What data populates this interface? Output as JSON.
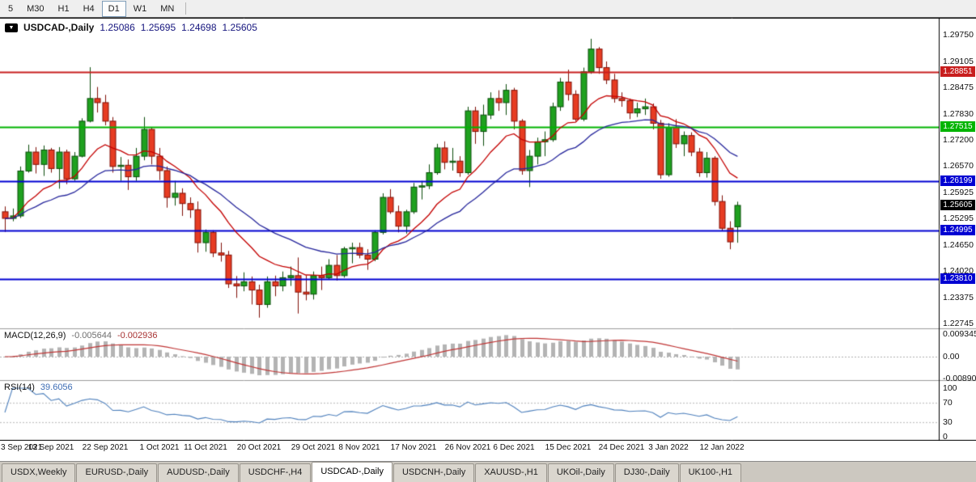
{
  "toolbar": {
    "timeframes": [
      {
        "label": "5",
        "active": false
      },
      {
        "label": "M30",
        "active": false
      },
      {
        "label": "H1",
        "active": false
      },
      {
        "label": "H4",
        "active": false
      },
      {
        "label": "D1",
        "active": true
      },
      {
        "label": "W1",
        "active": false
      },
      {
        "label": "MN",
        "active": false
      }
    ]
  },
  "chart": {
    "title_symbol": "USDCAD-,Daily",
    "ohlc": {
      "open": "1.25086",
      "high": "1.25695",
      "low": "1.24698",
      "close": "1.25605"
    },
    "current_price": {
      "label": "1.25605",
      "value": 1.25605
    },
    "y_axis_labels": [
      "1.29750",
      "1.29105",
      "1.28475",
      "1.27830",
      "1.27200",
      "1.26570",
      "1.25925",
      "1.25295",
      "1.24650",
      "1.24020",
      "1.23375",
      "1.22745"
    ],
    "levels": [
      {
        "value": 1.28851,
        "label": "1.28851",
        "color_key": "level_red"
      },
      {
        "value": 1.27515,
        "label": "1.27515",
        "color_key": "level_green"
      },
      {
        "value": 1.26199,
        "label": "1.26199",
        "color_key": "level_blue"
      },
      {
        "value": 1.24995,
        "label": "1.24995",
        "color_key": "level_blue"
      },
      {
        "value": 1.2381,
        "label": "1.23810",
        "color_key": "level_blue"
      }
    ]
  },
  "indicators": {
    "macd": {
      "label": "MACD(12,26,9)",
      "value": "-0.005644",
      "signal_value": "-0.002936",
      "fast": 12,
      "slow": 26,
      "signal": 9,
      "axis": [
        {
          "label": "0.009345",
          "value": 0.009345
        },
        {
          "label": "0.00",
          "value": 0
        },
        {
          "label": "-0.008905",
          "value": -0.008905
        }
      ]
    },
    "rsi": {
      "label": "RSI(14)",
      "value": "39.6056",
      "period": 14,
      "levels": [
        70,
        30
      ],
      "axis": [
        {
          "label": "100",
          "value": 100
        },
        {
          "label": "70",
          "value": 70
        },
        {
          "label": "30",
          "value": 30
        },
        {
          "label": "0",
          "value": 0
        }
      ]
    }
  },
  "tabs": [
    {
      "label": "USDX,Weekly",
      "active": false
    },
    {
      "label": "EURUSD-,Daily",
      "active": false
    },
    {
      "label": "AUDUSD-,Daily",
      "active": false
    },
    {
      "label": "USDCHF-,H4",
      "active": false
    },
    {
      "label": "USDCAD-,Daily",
      "active": true
    },
    {
      "label": "USDCNH-,Daily",
      "active": false
    },
    {
      "label": "XAUUSD-,H1",
      "active": false
    },
    {
      "label": "UKOil-,Daily",
      "active": false
    },
    {
      "label": "DJ30-,Daily",
      "active": false
    },
    {
      "label": "UK100-,H1",
      "active": false
    }
  ],
  "colors": {
    "bull": "#1fa11f",
    "bull_border": "#0b4d0b",
    "bear": "#e73c22",
    "bear_border": "#801008",
    "ma_fast": "#c40000",
    "ma_slow": "#26269c",
    "level_red": "#c81e1e",
    "level_green": "#00b400",
    "level_blue": "#0000d2",
    "tag_current_bg": "#000000",
    "macd_hist": "#b4b4b4",
    "macd_signal": "#c03535",
    "rsi_line": "#4f81bd",
    "panel_separator": "#9c9c9c"
  },
  "chart_data": {
    "type": "candlestick",
    "title": "USDCAD-,Daily",
    "ylim": [
      1.2262,
      1.3016
    ],
    "overlays": [
      {
        "name": "fast moving average",
        "color": "#c40000",
        "period": 12
      },
      {
        "name": "slow moving average",
        "color": "#26269c",
        "period": 26
      }
    ],
    "sub_panels": [
      "MACD(12,26,9)",
      "RSI(14)"
    ],
    "x_tick_labels": [
      {
        "label": "3 Sep 2021",
        "index": 0
      },
      {
        "label": "13 Sep 2021",
        "index": 6
      },
      {
        "label": "22 Sep 2021",
        "index": 13
      },
      {
        "label": "1 Oct 2021",
        "index": 20
      },
      {
        "label": "11 Oct 2021",
        "index": 26
      },
      {
        "label": "20 Oct 2021",
        "index": 33
      },
      {
        "label": "29 Oct 2021",
        "index": 40
      },
      {
        "label": "8 Nov 2021",
        "index": 46
      },
      {
        "label": "17 Nov 2021",
        "index": 53
      },
      {
        "label": "26 Nov 2021",
        "index": 60
      },
      {
        "label": "6 Dec 2021",
        "index": 66
      },
      {
        "label": "15 Dec 2021",
        "index": 73
      },
      {
        "label": "24 Dec 2021",
        "index": 80
      },
      {
        "label": "3 Jan 2022",
        "index": 86
      },
      {
        "label": "12 Jan 2022",
        "index": 93
      }
    ],
    "ohlc_series": [
      [
        1.2545,
        1.2558,
        1.2496,
        1.2529
      ],
      [
        1.2529,
        1.2553,
        1.2522,
        1.2535
      ],
      [
        1.2535,
        1.2655,
        1.253,
        1.2644
      ],
      [
        1.2644,
        1.2708,
        1.264,
        1.269
      ],
      [
        1.269,
        1.2702,
        1.2638,
        1.266
      ],
      [
        1.266,
        1.2706,
        1.2632,
        1.2695
      ],
      [
        1.2695,
        1.27,
        1.264,
        1.265
      ],
      [
        1.265,
        1.2702,
        1.2601,
        1.269
      ],
      [
        1.269,
        1.2696,
        1.2612,
        1.2625
      ],
      [
        1.2625,
        1.269,
        1.262,
        1.268
      ],
      [
        1.268,
        1.2772,
        1.2677,
        1.2765
      ],
      [
        1.2765,
        1.2896,
        1.2762,
        1.282
      ],
      [
        1.282,
        1.2848,
        1.2786,
        1.281
      ],
      [
        1.281,
        1.2829,
        1.2755,
        1.2765
      ],
      [
        1.2765,
        1.2775,
        1.264,
        1.2655
      ],
      [
        1.2655,
        1.2678,
        1.262,
        1.2658
      ],
      [
        1.2658,
        1.2672,
        1.2598,
        1.263
      ],
      [
        1.263,
        1.27,
        1.262,
        1.268
      ],
      [
        1.268,
        1.2775,
        1.267,
        1.2745
      ],
      [
        1.2745,
        1.275,
        1.266,
        1.268
      ],
      [
        1.268,
        1.27,
        1.2622,
        1.2645
      ],
      [
        1.2645,
        1.2655,
        1.2555,
        1.258
      ],
      [
        1.258,
        1.262,
        1.256,
        1.259
      ],
      [
        1.259,
        1.2602,
        1.2535,
        1.2565
      ],
      [
        1.2565,
        1.258,
        1.253,
        1.255
      ],
      [
        1.255,
        1.257,
        1.2446,
        1.247
      ],
      [
        1.247,
        1.2502,
        1.2448,
        1.2495
      ],
      [
        1.2495,
        1.25,
        1.2435,
        1.2445
      ],
      [
        1.2445,
        1.247,
        1.2424,
        1.244
      ],
      [
        1.244,
        1.245,
        1.236,
        1.237
      ],
      [
        1.237,
        1.2389,
        1.2336,
        1.2365
      ],
      [
        1.2365,
        1.2398,
        1.2352,
        1.2375
      ],
      [
        1.2375,
        1.2388,
        1.232,
        1.2355
      ],
      [
        1.2355,
        1.2368,
        1.2288,
        1.232
      ],
      [
        1.232,
        1.2388,
        1.2312,
        1.2375
      ],
      [
        1.2375,
        1.239,
        1.234,
        1.2365
      ],
      [
        1.2365,
        1.24,
        1.2352,
        1.2385
      ],
      [
        1.2385,
        1.2412,
        1.2365,
        1.239
      ],
      [
        1.239,
        1.2434,
        1.2298,
        1.235
      ],
      [
        1.235,
        1.239,
        1.233,
        1.2345
      ],
      [
        1.2345,
        1.24,
        1.2332,
        1.239
      ],
      [
        1.239,
        1.2412,
        1.2355,
        1.2385
      ],
      [
        1.2385,
        1.243,
        1.238,
        1.2415
      ],
      [
        1.2415,
        1.244,
        1.2378,
        1.239
      ],
      [
        1.239,
        1.246,
        1.2385,
        1.2455
      ],
      [
        1.2455,
        1.247,
        1.242,
        1.2458
      ],
      [
        1.2458,
        1.247,
        1.2432,
        1.244
      ],
      [
        1.244,
        1.2454,
        1.2404,
        1.243
      ],
      [
        1.243,
        1.25,
        1.2425,
        1.2495
      ],
      [
        1.2495,
        1.259,
        1.249,
        1.258
      ],
      [
        1.258,
        1.26,
        1.254,
        1.2545
      ],
      [
        1.2545,
        1.256,
        1.2495,
        1.251
      ],
      [
        1.251,
        1.255,
        1.2492,
        1.2545
      ],
      [
        1.2545,
        1.2615,
        1.254,
        1.2605
      ],
      [
        1.2605,
        1.262,
        1.2575,
        1.2608
      ],
      [
        1.2608,
        1.266,
        1.26,
        1.264
      ],
      [
        1.264,
        1.271,
        1.2635,
        1.27
      ],
      [
        1.27,
        1.2716,
        1.2648,
        1.2665
      ],
      [
        1.2665,
        1.27,
        1.2645,
        1.2668
      ],
      [
        1.2668,
        1.268,
        1.263,
        1.264
      ],
      [
        1.264,
        1.28,
        1.2635,
        1.279
      ],
      [
        1.279,
        1.28,
        1.271,
        1.274
      ],
      [
        1.274,
        1.2805,
        1.2705,
        1.278
      ],
      [
        1.278,
        1.2835,
        1.277,
        1.282
      ],
      [
        1.282,
        1.284,
        1.279,
        1.281
      ],
      [
        1.281,
        1.2855,
        1.278,
        1.284
      ],
      [
        1.284,
        1.2846,
        1.2745,
        1.2765
      ],
      [
        1.2765,
        1.277,
        1.2635,
        1.2645
      ],
      [
        1.2645,
        1.2695,
        1.2605,
        1.268
      ],
      [
        1.268,
        1.2725,
        1.266,
        1.2715
      ],
      [
        1.2715,
        1.274,
        1.268,
        1.272
      ],
      [
        1.272,
        1.281,
        1.2715,
        1.28
      ],
      [
        1.28,
        1.287,
        1.279,
        1.286
      ],
      [
        1.286,
        1.289,
        1.2815,
        1.283
      ],
      [
        1.283,
        1.284,
        1.2765,
        1.277
      ],
      [
        1.277,
        1.2895,
        1.2765,
        1.2885
      ],
      [
        1.2885,
        1.2965,
        1.288,
        1.294
      ],
      [
        1.294,
        1.2945,
        1.288,
        1.2895
      ],
      [
        1.2895,
        1.291,
        1.2855,
        1.2865
      ],
      [
        1.2865,
        1.288,
        1.281,
        1.282
      ],
      [
        1.282,
        1.2835,
        1.28,
        1.2815
      ],
      [
        1.2815,
        1.282,
        1.277,
        1.2785
      ],
      [
        1.2785,
        1.281,
        1.2775,
        1.2795
      ],
      [
        1.2795,
        1.282,
        1.278,
        1.28
      ],
      [
        1.28,
        1.2808,
        1.2745,
        1.276
      ],
      [
        1.276,
        1.2768,
        1.2625,
        1.2635
      ],
      [
        1.2635,
        1.276,
        1.263,
        1.275
      ],
      [
        1.275,
        1.277,
        1.27,
        1.271
      ],
      [
        1.271,
        1.274,
        1.268,
        1.273
      ],
      [
        1.273,
        1.2738,
        1.268,
        1.269
      ],
      [
        1.269,
        1.27,
        1.263,
        1.264
      ],
      [
        1.264,
        1.269,
        1.2628,
        1.2675
      ],
      [
        1.2675,
        1.268,
        1.256,
        1.257
      ],
      [
        1.257,
        1.2585,
        1.2498,
        1.2505
      ],
      [
        1.2505,
        1.2522,
        1.2454,
        1.2472
      ],
      [
        1.25086,
        1.25695,
        1.24698,
        1.25605
      ]
    ]
  }
}
